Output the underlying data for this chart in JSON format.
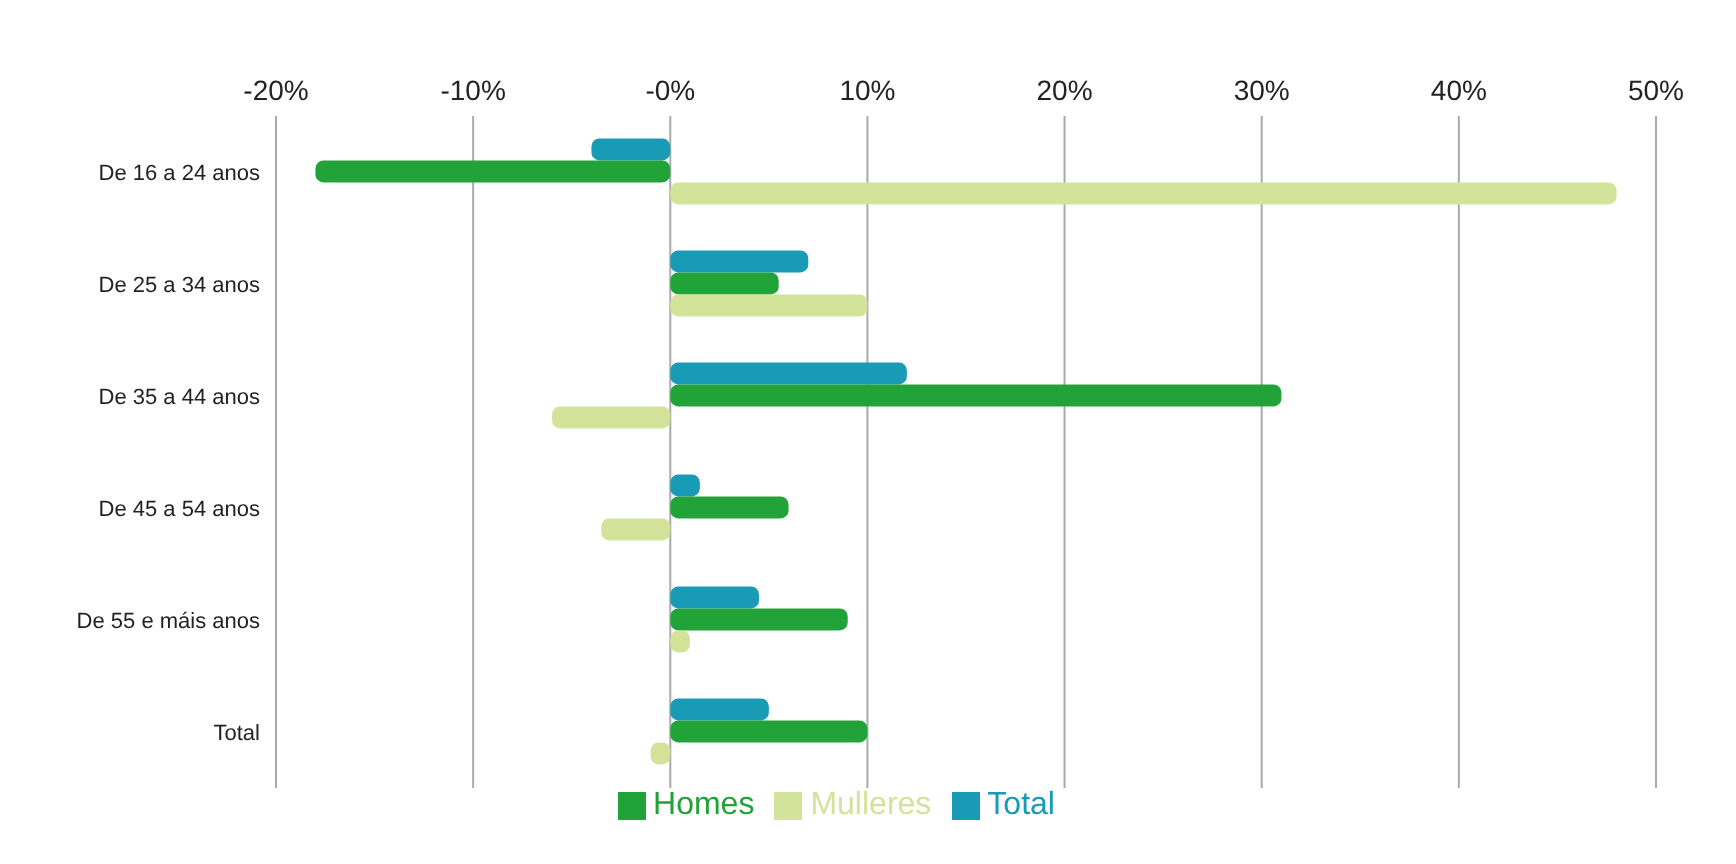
{
  "chart_data": {
    "type": "bar",
    "orientation": "horizontal",
    "categories": [
      "De 16 a 24 anos",
      "De 25 a 34 anos",
      "De 35 a 44 anos",
      "De 45 a 54 anos",
      "De 55 e máis anos",
      "Total"
    ],
    "series": [
      {
        "name": "Total",
        "color": "#1a9bb5",
        "values": [
          -4,
          7,
          12,
          1.5,
          4.5,
          5
        ]
      },
      {
        "name": "Homes",
        "color": "#22a33a",
        "values": [
          -18,
          5.5,
          31,
          6,
          9,
          10
        ]
      },
      {
        "name": "Mulleres",
        "color": "#d4e39a",
        "values": [
          48,
          10,
          -6,
          -3.5,
          1,
          -1
        ]
      }
    ],
    "xlim": [
      -20,
      50
    ],
    "xticks": [
      {
        "value": -20,
        "label": "-20%"
      },
      {
        "value": -10,
        "label": "-10%"
      },
      {
        "value": 0,
        "label": "-0%"
      },
      {
        "value": 10,
        "label": "10%"
      },
      {
        "value": 20,
        "label": "20%"
      },
      {
        "value": 30,
        "label": "30%"
      },
      {
        "value": 40,
        "label": "40%"
      },
      {
        "value": 50,
        "label": "50%"
      }
    ],
    "grid": "x",
    "legend": "bottom"
  }
}
